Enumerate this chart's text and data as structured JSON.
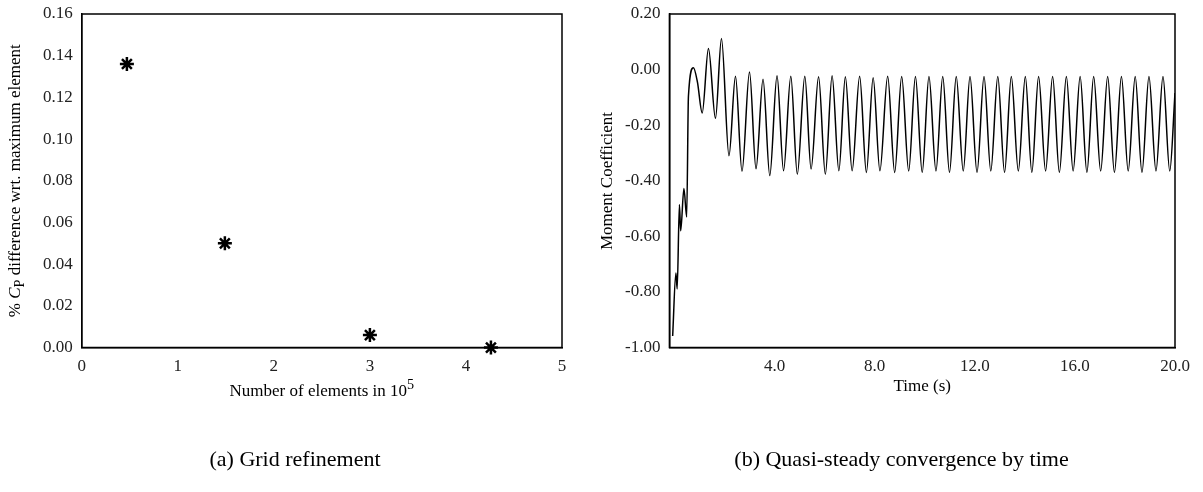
{
  "chart_data": [
    {
      "type": "scatter",
      "title": "(a) Grid refinement",
      "xlabel": "Number of elements in 10$^{5}$",
      "ylabel": "% C$_{P}$ difference wrt. maximum element",
      "x": [
        0.47,
        1.49,
        3.0,
        4.26
      ],
      "values": [
        0.136,
        0.05,
        0.006,
        0.0
      ],
      "color": "#000000",
      "marker": "cross",
      "xlim": [
        0,
        5
      ],
      "xticks": [
        0,
        1,
        2,
        3,
        4,
        5
      ],
      "ylim": [
        0,
        0.16
      ],
      "yticks": [
        {
          "value": 0,
          "label": "0.00"
        },
        {
          "value": 0.02,
          "label": "0.02"
        },
        {
          "value": 0.04,
          "label": "0.04"
        },
        {
          "value": 0.06,
          "label": "0.06"
        },
        {
          "value": 0.08,
          "label": "0.08"
        },
        {
          "value": 0.1,
          "label": "0.10"
        },
        {
          "value": 0.12,
          "label": "0.12"
        },
        {
          "value": 0.14,
          "label": "0.14"
        },
        {
          "value": 0.16,
          "label": "0.16"
        }
      ],
      "grid": false,
      "legend": false
    },
    {
      "type": "line",
      "title": "(b) Quasi-steady convergence by time",
      "xlabel": "Time (s)",
      "ylabel": "Moment Coefficient",
      "color": "#000000",
      "marker": "none",
      "x": [
        -0.07,
        0.06,
        0.11,
        0.2,
        0.25,
        0.38,
        0.49,
        0.56,
        0.76,
        0.92,
        1.11,
        1.36,
        1.64,
        1.88,
        2.18,
        2.44,
        2.7,
        3.0,
        3.26,
        3.54,
        3.81,
        4.1,
        4.36,
        4.65,
        4.91,
        5.21,
        5.46,
        5.76,
        6.03,
        6.3,
        6.57,
        6.83,
        7.1,
        7.4,
        7.67,
        7.94,
        8.21,
        8.52,
        8.8,
        9.08,
        9.36,
        9.63,
        9.9,
        10.17,
        10.45,
        10.72,
        10.99,
        11.26,
        11.54,
        11.81,
        12.09,
        12.37,
        12.64,
        12.92,
        13.19,
        13.46,
        13.74,
        14.02,
        14.28,
        14.55,
        14.83,
        15.11,
        15.38,
        15.66,
        15.93,
        16.21,
        16.48,
        16.75,
        17.03,
        17.31,
        17.58,
        17.86,
        18.13,
        18.41,
        18.68,
        18.96,
        19.24,
        19.52,
        19.79,
        20.0
      ],
      "values": [
        -0.958,
        -0.732,
        -0.789,
        -0.485,
        -0.58,
        -0.428,
        -0.53,
        -0.096,
        0.007,
        -0.045,
        -0.156,
        0.076,
        -0.175,
        0.112,
        -0.31,
        -0.024,
        -0.366,
        -0.009,
        -0.357,
        -0.035,
        -0.381,
        -0.022,
        -0.364,
        -0.024,
        -0.376,
        -0.024,
        -0.358,
        -0.026,
        -0.376,
        -0.022,
        -0.364,
        -0.026,
        -0.364,
        -0.024,
        -0.37,
        -0.029,
        -0.364,
        -0.024,
        -0.37,
        -0.025,
        -0.365,
        -0.025,
        -0.37,
        -0.025,
        -0.365,
        -0.025,
        -0.37,
        -0.025,
        -0.365,
        -0.025,
        -0.37,
        -0.025,
        -0.365,
        -0.025,
        -0.37,
        -0.025,
        -0.365,
        -0.025,
        -0.37,
        -0.025,
        -0.365,
        -0.025,
        -0.37,
        -0.025,
        -0.365,
        -0.025,
        -0.37,
        -0.025,
        -0.365,
        -0.025,
        -0.37,
        -0.025,
        -0.365,
        -0.025,
        -0.37,
        -0.025,
        -0.365,
        -0.025,
        -0.365,
        -0.084
      ],
      "xlim": [
        -0.2,
        20
      ],
      "xticks": [
        {
          "value": 4,
          "label": "4.0"
        },
        {
          "value": 8,
          "label": "8.0"
        },
        {
          "value": 12,
          "label": "12.0"
        },
        {
          "value": 16,
          "label": "16.0"
        },
        {
          "value": 20,
          "label": "20.0"
        }
      ],
      "ylim": [
        -1,
        0.2
      ],
      "yticks": [
        {
          "value": -1,
          "label": "-1.00"
        },
        {
          "value": -0.8,
          "label": "-0.80"
        },
        {
          "value": -0.6,
          "label": "-0.60"
        },
        {
          "value": -0.4,
          "label": "-0.40"
        },
        {
          "value": -0.2,
          "label": "-0.20"
        },
        {
          "value": 0,
          "label": "0.00"
        },
        {
          "value": 0.2,
          "label": "0.20"
        }
      ],
      "grid": false,
      "legend": false
    }
  ]
}
